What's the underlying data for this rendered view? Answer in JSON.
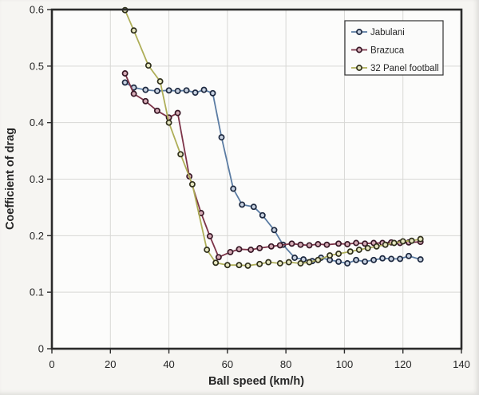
{
  "chart_data": {
    "type": "line",
    "title": "",
    "xlabel": "Ball speed (km/h)",
    "ylabel": "Coefficient of drag",
    "xlim": [
      0,
      140
    ],
    "ylim": [
      0,
      0.6
    ],
    "xticks": [
      0,
      20,
      40,
      60,
      80,
      100,
      120,
      140
    ],
    "yticks": [
      0,
      0.1,
      0.2,
      0.3,
      0.4,
      0.5,
      0.6
    ],
    "grid": true,
    "legend_position": "top-right",
    "series": [
      {
        "name": "Jabulani",
        "line_color": "#5b7ca3",
        "marker_ring": "#1d2940",
        "marker_fill": "#c7d1e0",
        "points": [
          [
            25,
            0.471
          ],
          [
            28,
            0.462
          ],
          [
            32,
            0.458
          ],
          [
            36,
            0.456
          ],
          [
            40,
            0.457
          ],
          [
            43,
            0.456
          ],
          [
            46,
            0.457
          ],
          [
            49,
            0.453
          ],
          [
            52,
            0.458
          ],
          [
            55,
            0.452
          ],
          [
            58,
            0.374
          ],
          [
            62,
            0.283
          ],
          [
            65,
            0.255
          ],
          [
            69,
            0.251
          ],
          [
            72,
            0.236
          ],
          [
            76,
            0.21
          ],
          [
            79,
            0.184
          ],
          [
            83,
            0.161
          ],
          [
            86,
            0.158
          ],
          [
            89,
            0.155
          ],
          [
            92,
            0.161
          ],
          [
            95,
            0.157
          ],
          [
            98,
            0.154
          ],
          [
            101,
            0.151
          ],
          [
            104,
            0.157
          ],
          [
            107,
            0.154
          ],
          [
            110,
            0.157
          ],
          [
            113,
            0.16
          ],
          [
            116,
            0.159
          ],
          [
            119,
            0.159
          ],
          [
            122,
            0.164
          ],
          [
            126,
            0.158
          ]
        ]
      },
      {
        "name": "Brazuca",
        "line_color": "#7d3449",
        "marker_ring": "#381826",
        "marker_fill": "#d6abb6",
        "points": [
          [
            25,
            0.487
          ],
          [
            28,
            0.451
          ],
          [
            32,
            0.438
          ],
          [
            36,
            0.421
          ],
          [
            40,
            0.409
          ],
          [
            43,
            0.417
          ],
          [
            47,
            0.305
          ],
          [
            51,
            0.24
          ],
          [
            54,
            0.199
          ],
          [
            57,
            0.162
          ],
          [
            61,
            0.171
          ],
          [
            64,
            0.176
          ],
          [
            68,
            0.175
          ],
          [
            71,
            0.178
          ],
          [
            75,
            0.181
          ],
          [
            78,
            0.183
          ],
          [
            82,
            0.186
          ],
          [
            85,
            0.184
          ],
          [
            88,
            0.183
          ],
          [
            91,
            0.185
          ],
          [
            94,
            0.184
          ],
          [
            98,
            0.186
          ],
          [
            101,
            0.185
          ],
          [
            104,
            0.187
          ],
          [
            107,
            0.186
          ],
          [
            110,
            0.187
          ],
          [
            113,
            0.187
          ],
          [
            116,
            0.188
          ],
          [
            119,
            0.187
          ],
          [
            122,
            0.188
          ],
          [
            126,
            0.189
          ]
        ]
      },
      {
        "name": "32 Panel football",
        "line_color": "#aeae58",
        "marker_ring": "#30301c",
        "marker_fill": "#e7e7c1",
        "points": [
          [
            25,
            0.599
          ],
          [
            28,
            0.563
          ],
          [
            33,
            0.501
          ],
          [
            37,
            0.473
          ],
          [
            40,
            0.4
          ],
          [
            44,
            0.344
          ],
          [
            48,
            0.291
          ],
          [
            53,
            0.175
          ],
          [
            56,
            0.152
          ],
          [
            60,
            0.148
          ],
          [
            64,
            0.148
          ],
          [
            67,
            0.147
          ],
          [
            71,
            0.15
          ],
          [
            74,
            0.153
          ],
          [
            78,
            0.151
          ],
          [
            81,
            0.153
          ],
          [
            85,
            0.151
          ],
          [
            88,
            0.153
          ],
          [
            91,
            0.157
          ],
          [
            95,
            0.165
          ],
          [
            98,
            0.168
          ],
          [
            102,
            0.172
          ],
          [
            105,
            0.175
          ],
          [
            108,
            0.178
          ],
          [
            111,
            0.181
          ],
          [
            114,
            0.184
          ],
          [
            117,
            0.187
          ],
          [
            120,
            0.19
          ],
          [
            123,
            0.191
          ],
          [
            126,
            0.194
          ]
        ]
      }
    ],
    "style": {
      "axis_color": "#2b2b2b",
      "grid_color": "#d8d8d5",
      "plot_bg": "#fcfcfb",
      "page_bg": "#f6f5f2",
      "text_color": "#262626",
      "legend_border": "#333333",
      "legend_bg": "#fbfbfa"
    }
  }
}
